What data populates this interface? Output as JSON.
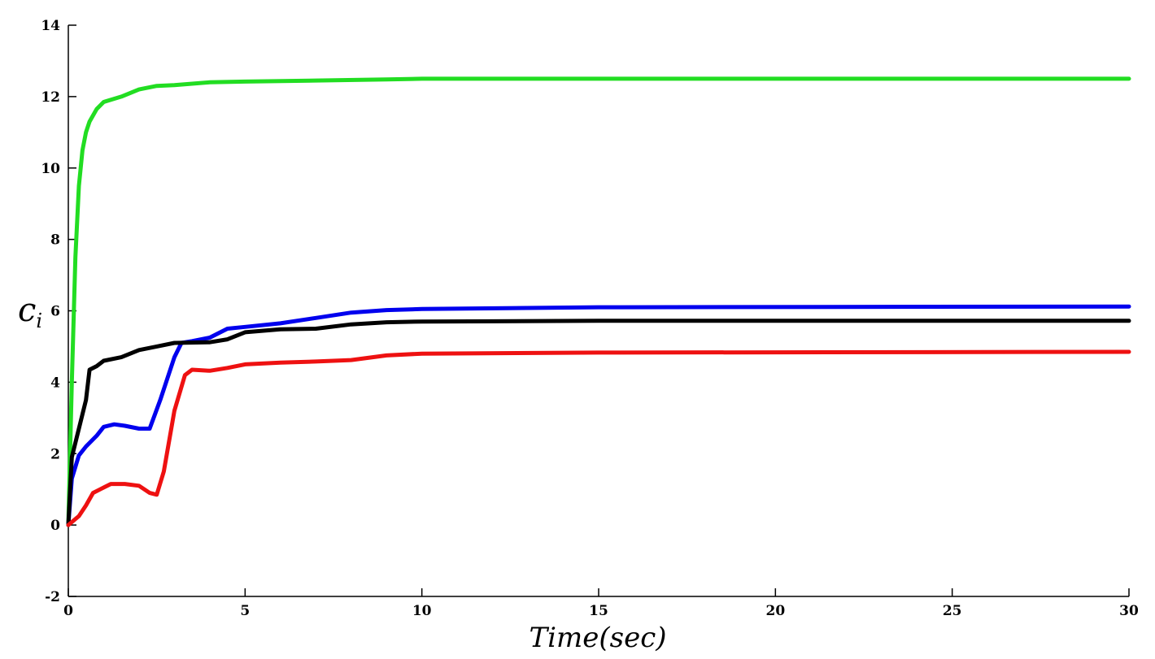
{
  "chart_data": {
    "type": "line",
    "title": "",
    "xlabel": "Time(sec)",
    "ylabel": "c",
    "ylabel_subscript": "i",
    "xlim": [
      0,
      30
    ],
    "ylim": [
      -2,
      14
    ],
    "xticks": [
      0,
      5,
      10,
      15,
      20,
      25,
      30
    ],
    "yticks": [
      -2,
      0,
      2,
      4,
      6,
      8,
      10,
      12,
      14
    ],
    "grid": false,
    "legend": "none",
    "series": [
      {
        "color": "#22dd22",
        "x": [
          0,
          0.1,
          0.2,
          0.3,
          0.4,
          0.5,
          0.6,
          0.8,
          1.0,
          1.5,
          2.0,
          2.5,
          3.0,
          4.0,
          5.0,
          7.0,
          9.0,
          10.0,
          30.0
        ],
        "y": [
          0,
          4.0,
          7.5,
          9.5,
          10.5,
          11.0,
          11.3,
          11.65,
          11.85,
          12.0,
          12.2,
          12.3,
          12.32,
          12.4,
          12.42,
          12.45,
          12.48,
          12.5,
          12.5
        ]
      },
      {
        "color": "#0000ee",
        "x": [
          0,
          0.1,
          0.3,
          0.5,
          0.8,
          1.0,
          1.3,
          1.6,
          2.0,
          2.3,
          2.6,
          3.0,
          3.2,
          3.5,
          4.0,
          4.5,
          5.0,
          6.0,
          7.0,
          8.0,
          9.0,
          10.0,
          15.0,
          30.0
        ],
        "y": [
          0,
          1.3,
          1.95,
          2.2,
          2.5,
          2.75,
          2.82,
          2.78,
          2.7,
          2.7,
          3.5,
          4.7,
          5.1,
          5.15,
          5.25,
          5.5,
          5.55,
          5.65,
          5.8,
          5.95,
          6.02,
          6.05,
          6.1,
          6.12
        ]
      },
      {
        "color": "#000000",
        "x": [
          0,
          0.1,
          0.3,
          0.5,
          0.6,
          0.8,
          1.0,
          1.5,
          2.0,
          2.5,
          3.0,
          4.0,
          4.5,
          5.0,
          6.0,
          7.0,
          8.0,
          9.0,
          10.0,
          15.0,
          30.0
        ],
        "y": [
          0,
          1.9,
          2.7,
          3.5,
          4.35,
          4.45,
          4.6,
          4.7,
          4.9,
          5.0,
          5.1,
          5.12,
          5.2,
          5.4,
          5.48,
          5.5,
          5.62,
          5.68,
          5.7,
          5.72,
          5.72
        ]
      },
      {
        "color": "#ee1111",
        "x": [
          0,
          0.3,
          0.5,
          0.7,
          0.9,
          1.2,
          1.6,
          2.0,
          2.3,
          2.5,
          2.7,
          3.0,
          3.3,
          3.5,
          4.0,
          4.5,
          5.0,
          6.0,
          7.0,
          8.0,
          9.0,
          10.0,
          15.0,
          30.0
        ],
        "y": [
          0,
          0.25,
          0.55,
          0.9,
          1.0,
          1.15,
          1.15,
          1.1,
          0.9,
          0.85,
          1.5,
          3.2,
          4.2,
          4.35,
          4.32,
          4.4,
          4.5,
          4.55,
          4.58,
          4.62,
          4.75,
          4.8,
          4.83,
          4.85
        ]
      }
    ]
  }
}
